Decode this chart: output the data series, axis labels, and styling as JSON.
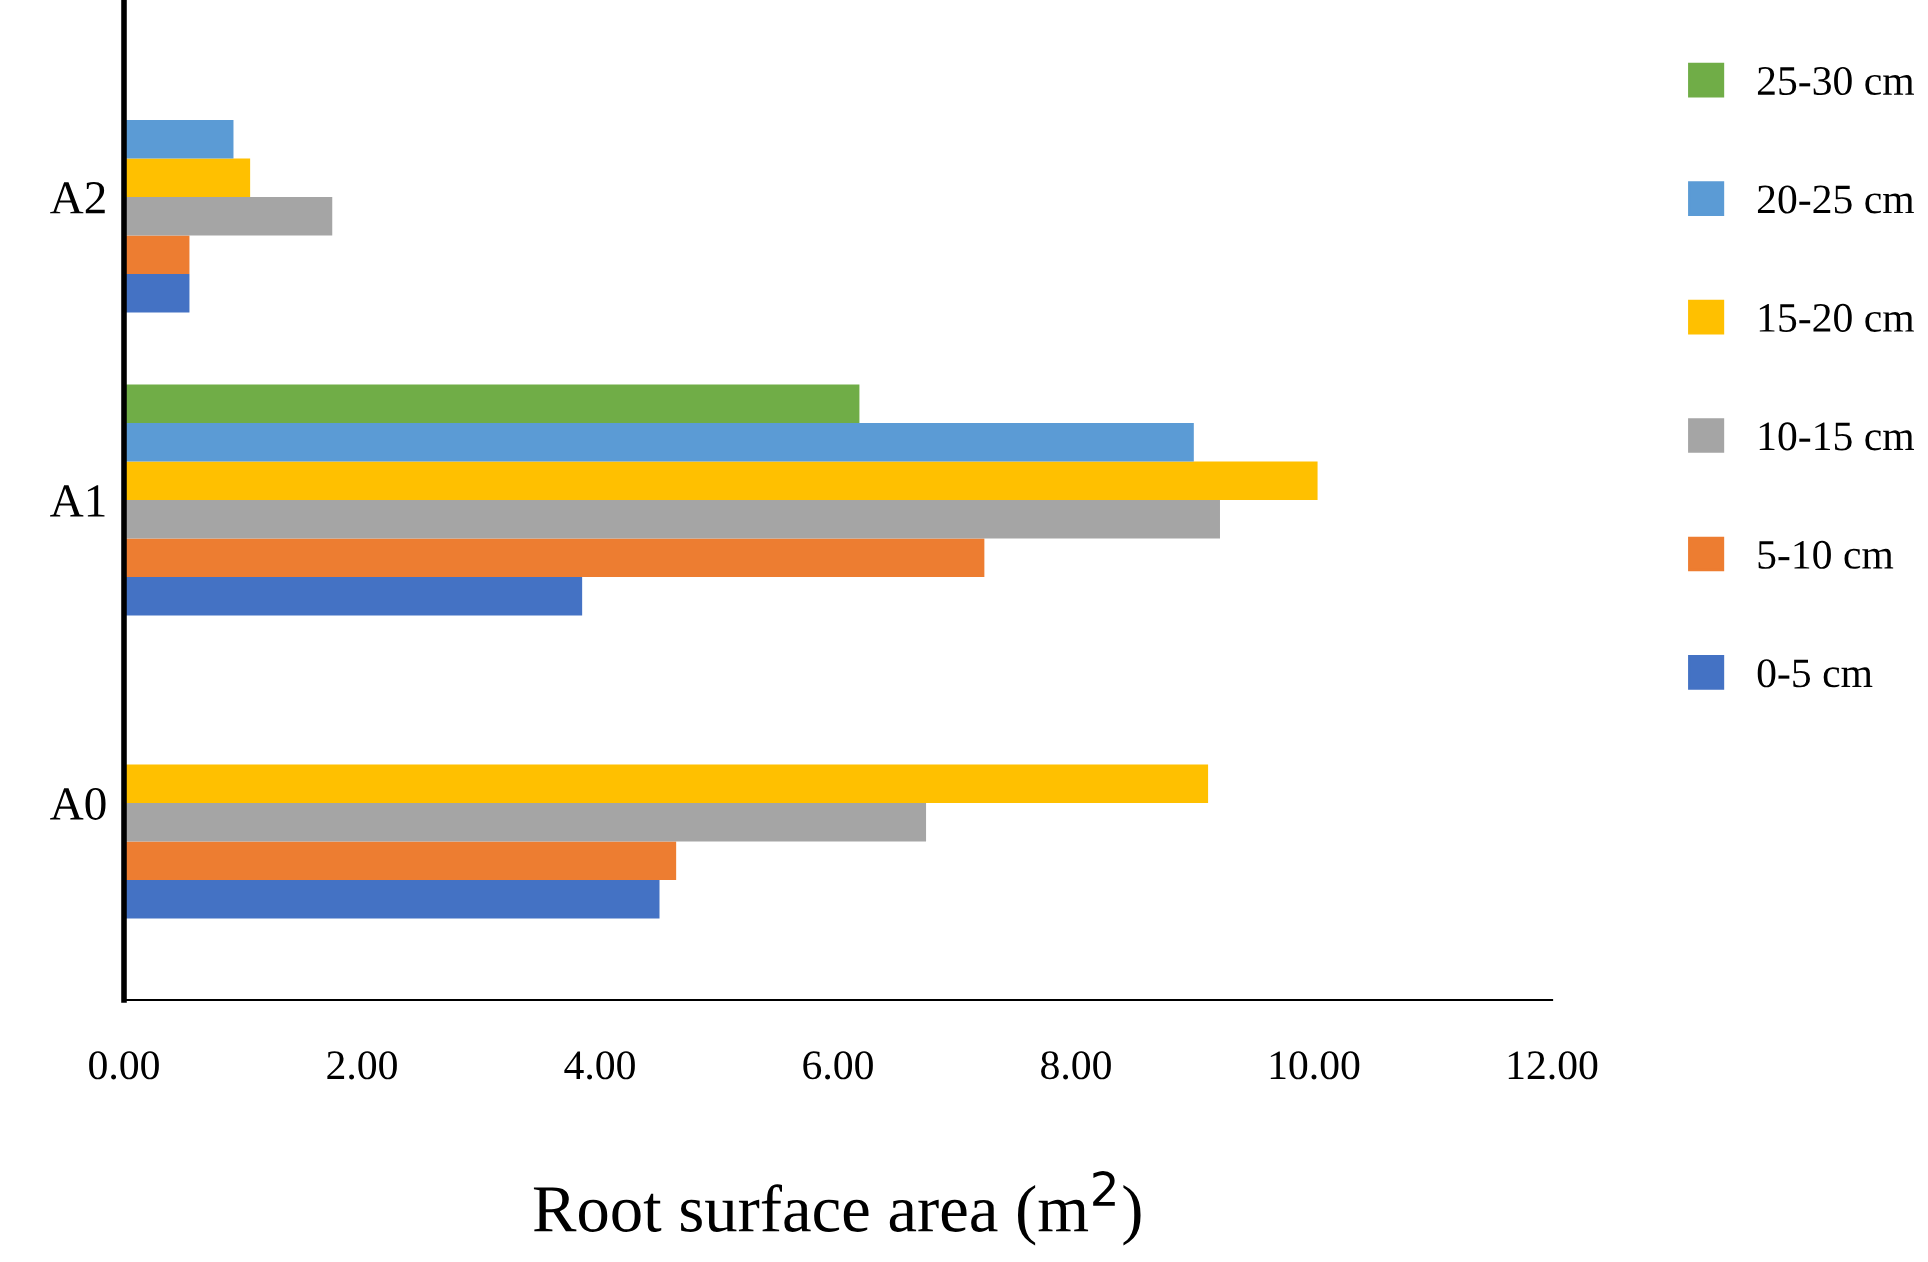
{
  "chart_data": {
    "type": "bar",
    "orientation": "horizontal",
    "xlabel": "Root surface area (m$^{2}$)",
    "categories": [
      "A2",
      "A1",
      "A0"
    ],
    "series": [
      {
        "name": "0-5 cm",
        "color": "#4472c4",
        "values": [
          0.55,
          3.85,
          4.5
        ]
      },
      {
        "name": "5-10 cm",
        "color": "#ed7d31",
        "values": [
          0.55,
          7.23,
          4.64
        ]
      },
      {
        "name": "10-15 cm",
        "color": "#a5a5a5",
        "values": [
          1.75,
          9.21,
          6.74
        ]
      },
      {
        "name": "15-20 cm",
        "color": "#ffc000",
        "values": [
          1.06,
          10.03,
          9.11
        ]
      },
      {
        "name": "20-25 cm",
        "color": "#5b9bd5",
        "values": [
          0.92,
          8.99,
          null
        ]
      },
      {
        "name": "25-30 cm",
        "color": "#70ad47",
        "values": [
          null,
          6.18,
          null
        ]
      }
    ],
    "xlim": [
      0,
      12
    ],
    "xticks": [
      {
        "value": 0,
        "label": "0.00"
      },
      {
        "value": 2,
        "label": "2.00"
      },
      {
        "value": 4,
        "label": "4.00"
      },
      {
        "value": 6,
        "label": "6.00"
      },
      {
        "value": 8,
        "label": "8.00"
      },
      {
        "value": 10,
        "label": "10.00"
      },
      {
        "value": 12,
        "label": "12.00"
      }
    ],
    "legend": "right",
    "grid": false
  }
}
